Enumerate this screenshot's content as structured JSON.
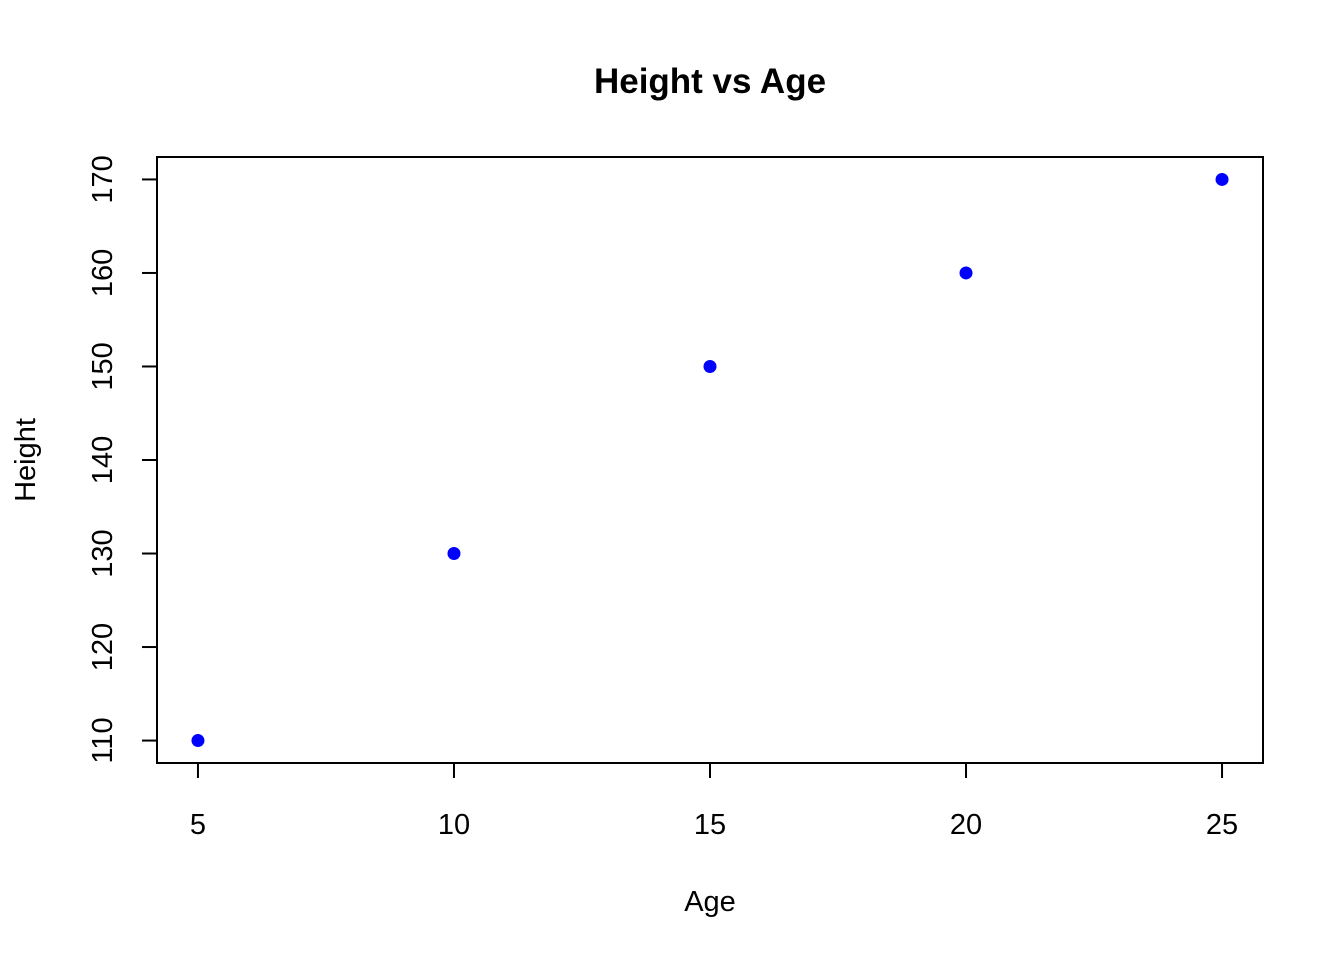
{
  "chart_data": {
    "type": "scatter",
    "title": "Height vs Age",
    "xlabel": "Age",
    "ylabel": "Height",
    "x": [
      5,
      10,
      15,
      20,
      25
    ],
    "y": [
      110,
      130,
      150,
      160,
      170
    ],
    "xlim": [
      4.2,
      25.8
    ],
    "ylim": [
      107.6,
      172.4
    ],
    "xticks": [
      5,
      10,
      15,
      20,
      25
    ],
    "xtick_labels": [
      "5",
      "10",
      "15",
      "20",
      "25"
    ],
    "yticks": [
      110,
      120,
      130,
      140,
      150,
      160,
      170
    ],
    "ytick_labels": [
      "110",
      "120",
      "130",
      "140",
      "150",
      "160",
      "170"
    ],
    "point_color": "#0000ff",
    "grid": false,
    "legend": "none"
  }
}
